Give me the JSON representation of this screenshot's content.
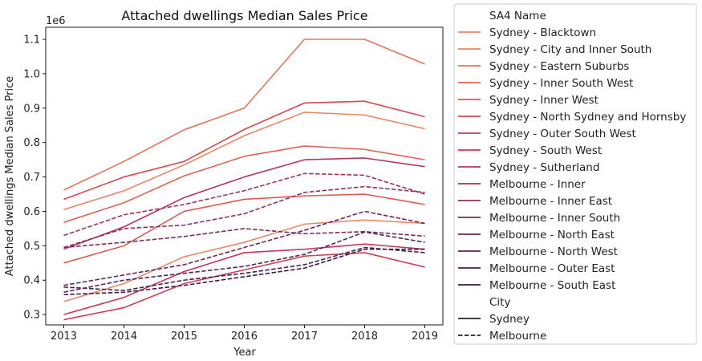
{
  "chart_data": {
    "type": "line",
    "title": "Attached dwellings Median Sales Price",
    "xlabel": "Year",
    "ylabel": "Attached dwellings Median Sales Price",
    "y_scale_label": "1e6",
    "x": [
      2013,
      2014,
      2015,
      2016,
      2017,
      2018,
      2019
    ],
    "xlim": [
      2012.7,
      2019.3
    ],
    "ylim": [
      0.27,
      1.135
    ],
    "yticks": [
      0.3,
      0.4,
      0.5,
      0.6,
      0.7,
      0.8,
      0.9,
      1.0,
      1.1
    ],
    "ytick_labels": [
      "0.3",
      "0.4",
      "0.5",
      "0.6",
      "0.7",
      "0.8",
      "0.9",
      "1.0",
      "1.1"
    ],
    "grid": false,
    "legend": {
      "placement": "outside-right",
      "hue_title": "SA4 Name",
      "style_title": "City",
      "styles": [
        {
          "name": "Sydney",
          "dash": "solid"
        },
        {
          "name": "Melbourne",
          "dash": "dashed"
        }
      ]
    },
    "series": [
      {
        "name": "Sydney - Blacktown",
        "city": "Sydney",
        "color": "#e9896a",
        "values": [
          0.338,
          0.39,
          0.468,
          0.51,
          0.563,
          0.575,
          0.565
        ]
      },
      {
        "name": "Sydney - City and Inner South",
        "city": "Sydney",
        "color": "#e88664",
        "values": [
          0.605,
          0.66,
          0.735,
          0.82,
          0.888,
          0.88,
          0.84
        ]
      },
      {
        "name": "Sydney - Eastern Suburbs",
        "city": "Sydney",
        "color": "#e4755a",
        "values": [
          0.662,
          0.745,
          0.837,
          0.9,
          1.1,
          1.1,
          1.028
        ]
      },
      {
        "name": "Sydney - Inner South West",
        "city": "Sydney",
        "color": "#df6454",
        "values": [
          0.568,
          0.625,
          0.703,
          0.76,
          0.79,
          0.78,
          0.75
        ]
      },
      {
        "name": "Sydney - Inner West",
        "city": "Sydney",
        "color": "#dd5b4e",
        "values": [
          0.45,
          0.5,
          0.6,
          0.635,
          0.645,
          0.65,
          0.62
        ]
      },
      {
        "name": "Sydney - North Sydney and Hornsby",
        "city": "Sydney",
        "color": "#d4484f",
        "values": [
          0.635,
          0.7,
          0.745,
          0.838,
          0.915,
          0.92,
          0.875
        ]
      },
      {
        "name": "Sydney - Outer South West",
        "city": "Sydney",
        "color": "#cc3e53",
        "values": [
          0.285,
          0.32,
          0.39,
          0.43,
          0.47,
          0.48,
          0.438
        ]
      },
      {
        "name": "Sydney - South West",
        "city": "Sydney",
        "color": "#c4385a",
        "values": [
          0.3,
          0.35,
          0.425,
          0.48,
          0.49,
          0.505,
          0.49
        ]
      },
      {
        "name": "Sydney - Sutherland",
        "city": "Sydney",
        "color": "#b33660",
        "values": [
          0.49,
          0.555,
          0.64,
          0.7,
          0.75,
          0.755,
          0.73
        ]
      },
      {
        "name": "Melbourne - Inner",
        "city": "Melbourne",
        "color": "#a0325f",
        "values": [
          0.53,
          0.59,
          0.62,
          0.66,
          0.71,
          0.705,
          0.65
        ]
      },
      {
        "name": "Melbourne - Inner East",
        "city": "Melbourne",
        "color": "#8e2f5e",
        "values": [
          0.495,
          0.55,
          0.56,
          0.593,
          0.655,
          0.672,
          0.655
        ]
      },
      {
        "name": "Melbourne - Inner South",
        "city": "Melbourne",
        "color": "#7d2b5c",
        "values": [
          0.495,
          0.51,
          0.527,
          0.55,
          0.535,
          0.541,
          0.528
        ]
      },
      {
        "name": "Melbourne - North East",
        "city": "Melbourne",
        "color": "#6a275a",
        "values": [
          0.385,
          0.415,
          0.445,
          0.495,
          0.545,
          0.6,
          0.565
        ]
      },
      {
        "name": "Melbourne - North West",
        "city": "Melbourne",
        "color": "#592356",
        "values": [
          0.365,
          0.4,
          0.42,
          0.44,
          0.475,
          0.54,
          0.51
        ]
      },
      {
        "name": "Melbourne - Outer East",
        "city": "Melbourne",
        "color": "#481f50",
        "values": [
          0.38,
          0.37,
          0.4,
          0.42,
          0.445,
          0.495,
          0.48
        ]
      },
      {
        "name": "Melbourne - South East",
        "city": "Melbourne",
        "color": "#381b49",
        "values": [
          0.358,
          0.365,
          0.385,
          0.41,
          0.435,
          0.49,
          0.49
        ]
      }
    ]
  }
}
